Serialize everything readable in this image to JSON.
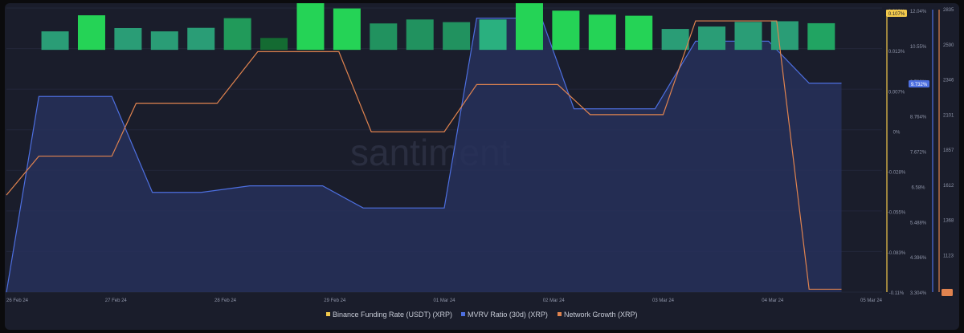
{
  "watermark": "santiment",
  "chart_data": {
    "type": "bar",
    "x_ticks": [
      "26 Feb 24",
      "27 Feb 24",
      "28 Feb 24",
      "29 Feb 24",
      "01 Mar 24",
      "02 Mar 24",
      "03 Mar 24",
      "04 Mar 24",
      "05 Mar 24"
    ],
    "x_range": [
      0,
      216
    ],
    "legend": {
      "position": "bottom-center",
      "items": [
        {
          "name": "Binance Funding Rate (USDT) (XRP)",
          "color": "#f2c94c"
        },
        {
          "name": "MVRV Ratio (30d) (XRP)",
          "color": "#4d6fe0"
        },
        {
          "name": "Network Growth (XRP)",
          "color": "#e0834f"
        }
      ]
    },
    "axes": {
      "funding": {
        "ticks": [
          "0.019%",
          "0.013%",
          "0.007%",
          "0%",
          "-0.028%",
          "-0.055%",
          "-0.083%",
          "-0.11%"
        ],
        "marker": "0.107%",
        "marker_color": "#f2c94c"
      },
      "mvrv": {
        "ticks": [
          "12.04%",
          "10.55%",
          "9.732%",
          "8.764%",
          "7.672%",
          "6.58%",
          "5.488%",
          "4.396%",
          "3.304%"
        ],
        "marker": "9.732%",
        "marker_color": "#4d6fe0"
      },
      "network_growth": {
        "ticks": [
          "2835",
          "2590",
          "2346",
          "2101",
          "1857",
          "1612",
          "1368",
          "1123",
          ""
        ],
        "marker": "",
        "marker_color": "#e0834f"
      }
    },
    "series": [
      {
        "name": "Binance Funding Rate (USDT) (XRP)",
        "kind": "bar",
        "ylim": [
          -0.11,
          0.019
        ],
        "bars": [
          {
            "x": 12,
            "value": 0.0084,
            "color": "#2a9d76"
          },
          {
            "x": 21,
            "value": 0.0157,
            "color": "#25d356"
          },
          {
            "x": 30,
            "value": 0.0099,
            "color": "#2a9d76"
          },
          {
            "x": 39,
            "value": 0.0084,
            "color": "#2a9d76"
          },
          {
            "x": 48,
            "value": 0.01,
            "color": "#2a9d76"
          },
          {
            "x": 57,
            "value": 0.0144,
            "color": "#219a5a"
          },
          {
            "x": 66,
            "value": 0.0054,
            "color": "#146b32"
          },
          {
            "x": 75,
            "value": 0.0214,
            "color": "#25d356"
          },
          {
            "x": 84,
            "value": 0.0188,
            "color": "#25d356"
          },
          {
            "x": 93,
            "value": 0.012,
            "color": "#21925f"
          },
          {
            "x": 102,
            "value": 0.0138,
            "color": "#21925f"
          },
          {
            "x": 111,
            "value": 0.0126,
            "color": "#21925f"
          },
          {
            "x": 120,
            "value": 0.0138,
            "color": "#2ab07f"
          },
          {
            "x": 129,
            "value": 0.0229,
            "color": "#25d356"
          },
          {
            "x": 138,
            "value": 0.0178,
            "color": "#25d356"
          },
          {
            "x": 147,
            "value": 0.016,
            "color": "#25d356"
          },
          {
            "x": 156,
            "value": 0.0155,
            "color": "#25d356"
          },
          {
            "x": 165,
            "value": 0.0095,
            "color": "#2a9d76"
          },
          {
            "x": 174,
            "value": 0.0106,
            "color": "#2a9d76"
          },
          {
            "x": 183,
            "value": 0.0127,
            "color": "#2a9d76"
          },
          {
            "x": 192,
            "value": 0.013,
            "color": "#2a9d76"
          },
          {
            "x": 201,
            "value": 0.0121,
            "color": "#21a462"
          }
        ]
      },
      {
        "name": "MVRV Ratio (30d) (XRP)",
        "kind": "area",
        "ylim": [
          3.304,
          12.04
        ],
        "points": [
          [
            0,
            3.3
          ],
          [
            8,
            9.32
          ],
          [
            26,
            9.32
          ],
          [
            36,
            6.37
          ],
          [
            48,
            6.37
          ],
          [
            60,
            6.57
          ],
          [
            78,
            6.57
          ],
          [
            88,
            5.89
          ],
          [
            108,
            5.89
          ],
          [
            116,
            11.73
          ],
          [
            132,
            11.73
          ],
          [
            140,
            8.94
          ],
          [
            160,
            8.94
          ],
          [
            170,
            11.02
          ],
          [
            188,
            11.02
          ],
          [
            198,
            9.73
          ],
          [
            206,
            9.73
          ]
        ]
      },
      {
        "name": "Network Growth (XRP)",
        "kind": "line",
        "ylim": [
          850,
          2835
        ],
        "points": [
          [
            0,
            1528
          ],
          [
            8,
            1800
          ],
          [
            26,
            1800
          ],
          [
            32,
            2170
          ],
          [
            52,
            2170
          ],
          [
            62,
            2530
          ],
          [
            82,
            2530
          ],
          [
            90,
            1970
          ],
          [
            108,
            1970
          ],
          [
            116,
            2300
          ],
          [
            136,
            2300
          ],
          [
            144,
            2090
          ],
          [
            162,
            2090
          ],
          [
            170,
            2745
          ],
          [
            190,
            2745
          ],
          [
            198,
            870
          ],
          [
            206,
            870
          ]
        ]
      }
    ]
  }
}
